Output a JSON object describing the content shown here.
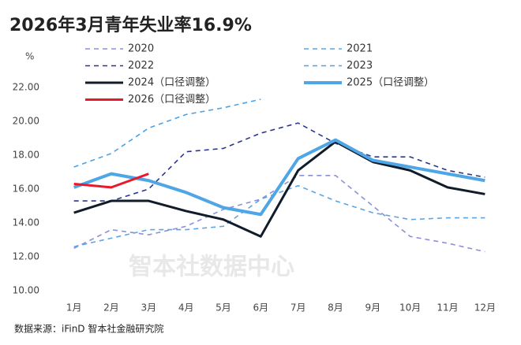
{
  "chart_data": {
    "type": "line",
    "title": "2026年3月青年失业率16.9%",
    "y_unit": "%",
    "watermark": "智本社数据中心",
    "source": "数据来源：iFinD 智本社金融研究院",
    "categories": [
      "1月",
      "2月",
      "3月",
      "4月",
      "5月",
      "6月",
      "7月",
      "8月",
      "9月",
      "10月",
      "11月",
      "12月"
    ],
    "ylim": [
      10,
      22
    ],
    "yticks": [
      {
        "value": 10,
        "label": "10.00"
      },
      {
        "value": 12,
        "label": "12.00"
      },
      {
        "value": 14,
        "label": "14.00"
      },
      {
        "value": 16,
        "label": "16.00"
      },
      {
        "value": 18,
        "label": "18.00"
      },
      {
        "value": 20,
        "label": "20.00"
      },
      {
        "value": 22,
        "label": "22.00"
      }
    ],
    "grid": false,
    "series": [
      {
        "name": "2020",
        "color": "#8c90d8",
        "dashed": true,
        "values": [
          12.5,
          13.6,
          13.3,
          13.8,
          14.8,
          15.4,
          16.8,
          16.8,
          15.0,
          13.2,
          12.8,
          12.3
        ]
      },
      {
        "name": "2021",
        "color": "#5aa5e6",
        "dashed": true,
        "values": [
          12.6,
          13.1,
          13.6,
          13.6,
          13.8,
          15.4,
          16.2,
          15.3,
          14.6,
          14.2,
          14.3,
          14.3
        ]
      },
      {
        "name": "2022",
        "color": "#2b3590",
        "dashed": true,
        "values": [
          15.3,
          15.3,
          16.0,
          18.2,
          18.4,
          19.3,
          19.9,
          18.7,
          17.9,
          17.9,
          17.1,
          16.7
        ]
      },
      {
        "name": "2023",
        "color": "#4aa3e6",
        "dashed": true,
        "values": [
          17.3,
          18.1,
          19.6,
          20.4,
          20.8,
          21.3,
          null,
          null,
          null,
          null,
          null,
          null
        ]
      },
      {
        "name": "2024（口径调整）",
        "color": "#111c2a",
        "dashed": false,
        "values": [
          14.6,
          15.3,
          15.3,
          14.7,
          14.2,
          13.2,
          17.1,
          18.8,
          17.6,
          17.1,
          16.1,
          15.7
        ]
      },
      {
        "name": "2025（口径调整）",
        "color": "#4ea6e6",
        "dashed": false,
        "values": [
          16.1,
          16.9,
          16.5,
          15.8,
          14.9,
          14.5,
          17.8,
          18.9,
          17.7,
          17.3,
          16.9,
          16.5
        ]
      },
      {
        "name": "2026（口径调整）",
        "color": "#e8182a",
        "dashed": false,
        "values": [
          16.3,
          16.1,
          16.9,
          null,
          null,
          null,
          null,
          null,
          null,
          null,
          null,
          null
        ]
      }
    ]
  }
}
